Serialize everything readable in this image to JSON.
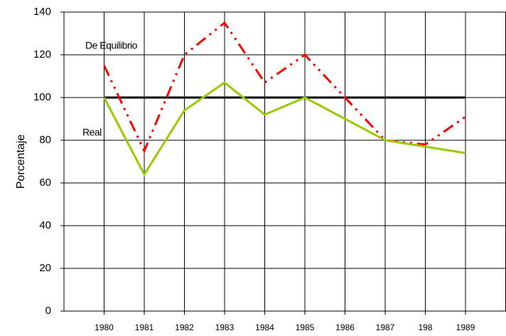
{
  "chart_data": {
    "type": "line",
    "y_label": "Porcentaje",
    "categories": [
      "1980",
      "1981",
      "1982",
      "1983",
      "1984",
      "1985",
      "1986",
      "1987",
      "198",
      "1989"
    ],
    "series": [
      {
        "name": "De Equilibrio",
        "color": "#ff0000",
        "values": [
          115,
          75,
          120,
          135,
          107,
          120,
          100,
          80,
          78,
          91
        ]
      },
      {
        "name": "Real",
        "color": "#99cc00",
        "values": [
          100,
          64,
          94,
          107,
          92,
          100,
          90,
          80,
          77,
          74
        ]
      },
      {
        "color": "#000000",
        "values": [
          100,
          100,
          100,
          100,
          100,
          100,
          100,
          100,
          100,
          100
        ]
      }
    ],
    "ylim": [
      0,
      140
    ],
    "yticks": [
      0,
      20,
      40,
      60,
      80,
      100,
      120,
      140
    ],
    "grid": true
  }
}
